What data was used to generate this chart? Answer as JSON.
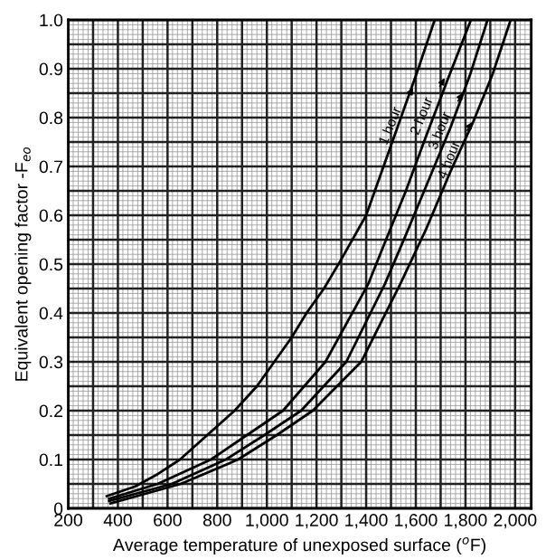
{
  "chart_data": {
    "type": "line",
    "xlabel": "Average temperature of unexposed surface ($^{o}$F)",
    "ylabel": "Equivalent opening factor -F$_{eo}$",
    "series": [
      {
        "color": "#000000",
        "x": [
          355,
          470,
          560,
          650,
          760,
          870,
          960,
          1030,
          1100,
          1160,
          1230,
          1300,
          1400,
          1470,
          1540,
          1610,
          1676
        ],
        "values": [
          0.025,
          0.045,
          0.07,
          0.1,
          0.15,
          0.2,
          0.25,
          0.3,
          0.35,
          0.4,
          0.45,
          0.51,
          0.6,
          0.7,
          0.8,
          0.9,
          1.0
        ]
      },
      {
        "color": "#000000",
        "x": [
          365,
          560,
          775,
          920,
          1065,
          1236,
          1409,
          1480,
          1560,
          1640,
          1730,
          1822
        ],
        "values": [
          0.02,
          0.05,
          0.1,
          0.15,
          0.2,
          0.3,
          0.46,
          0.55,
          0.65,
          0.76,
          0.88,
          1.0
        ]
      },
      {
        "color": "#000000",
        "x": [
          365,
          617,
          835,
          990,
          1138,
          1320,
          1476,
          1560,
          1650,
          1740,
          1820,
          1889
        ],
        "values": [
          0.015,
          0.05,
          0.1,
          0.15,
          0.2,
          0.3,
          0.46,
          0.56,
          0.67,
          0.78,
          0.89,
          1.0
        ]
      },
      {
        "color": "#000000",
        "x": [
          370,
          653,
          884,
          1040,
          1185,
          1380,
          1538,
          1640,
          1740,
          1830,
          1910,
          1982
        ],
        "values": [
          0.01,
          0.05,
          0.1,
          0.15,
          0.2,
          0.3,
          0.46,
          0.57,
          0.69,
          0.79,
          0.89,
          1.0
        ]
      }
    ],
    "annotations": [
      {
        "text": "1 hour",
        "x": 1600,
        "y": 0.87
      },
      {
        "text": "2 hour",
        "x": 1727,
        "y": 0.89
      },
      {
        "text": "3 hour",
        "x": 1800,
        "y": 0.86
      },
      {
        "text": "4 hour",
        "x": 1837,
        "y": 0.8
      }
    ],
    "xlim": [
      200,
      2065
    ],
    "ylim": [
      0,
      1.0
    ],
    "xticks": [
      200,
      400,
      600,
      800,
      {
        "value": 1000,
        "label": "1,000"
      },
      {
        "value": 1200,
        "label": "1,200"
      },
      {
        "value": 1400,
        "label": "1,400"
      },
      {
        "value": 1600,
        "label": "1,600"
      },
      {
        "value": 1800,
        "label": "1,800"
      },
      {
        "value": 2000,
        "label": "2,000"
      }
    ],
    "yticks": [
      0,
      0.1,
      0.2,
      0.3,
      0.4,
      0.5,
      0.6,
      0.7,
      0.8,
      0.9,
      {
        "value": 1.0,
        "label": "1.0"
      }
    ],
    "grid": true,
    "marker": "none",
    "line_style": "solid"
  }
}
